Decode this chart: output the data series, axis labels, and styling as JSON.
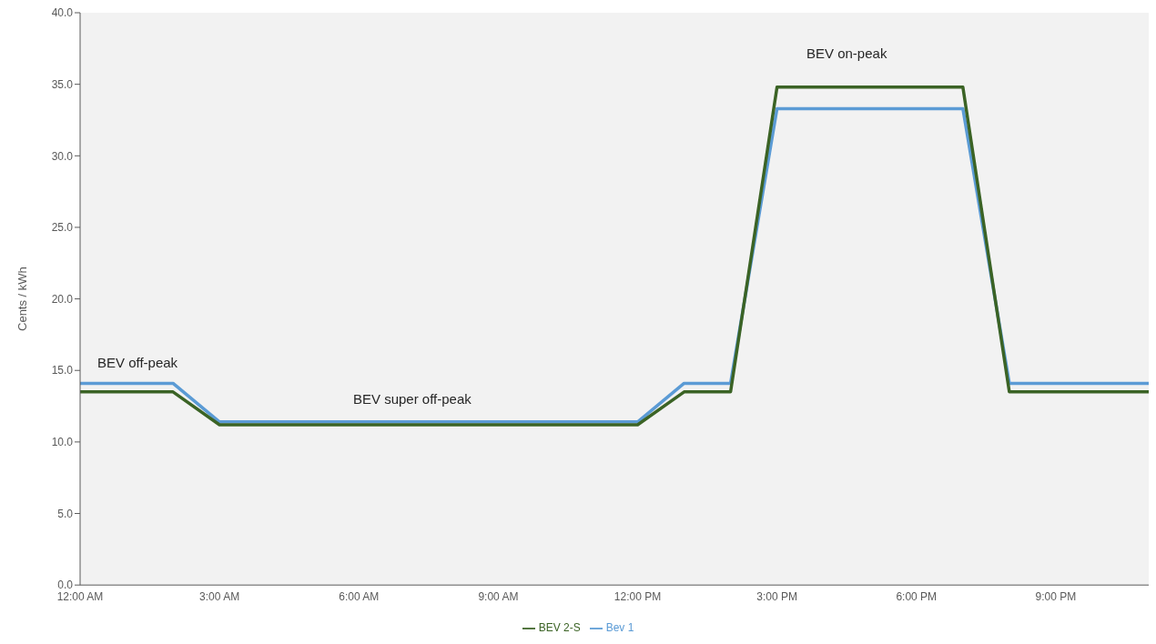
{
  "chart_data": {
    "type": "line",
    "ylabel": "Cents / kWh",
    "categories": [
      "12:00 AM",
      null,
      null,
      "3:00 AM",
      null,
      null,
      "6:00 AM",
      null,
      null,
      "9:00 AM",
      null,
      null,
      "12:00 PM",
      null,
      null,
      "3:00 PM",
      null,
      null,
      "6:00 PM",
      null,
      null,
      "9:00 PM",
      null,
      null
    ],
    "series": [
      {
        "name": "Bev 1",
        "color": "#5b9bd5",
        "values": [
          14.1,
          14.1,
          14.1,
          11.4,
          11.4,
          11.4,
          11.4,
          11.4,
          11.4,
          11.4,
          11.4,
          11.4,
          11.4,
          14.1,
          14.1,
          33.3,
          33.3,
          33.3,
          33.3,
          33.3,
          14.1,
          14.1,
          14.1,
          14.1
        ]
      },
      {
        "name": "BEV 2-S",
        "color": "#3b6325",
        "values": [
          13.5,
          13.5,
          13.5,
          11.2,
          11.2,
          11.2,
          11.2,
          11.2,
          11.2,
          11.2,
          11.2,
          11.2,
          11.2,
          13.5,
          13.5,
          34.8,
          34.8,
          34.8,
          34.8,
          34.8,
          13.5,
          13.5,
          13.5,
          13.5
        ]
      }
    ],
    "ylim": [
      0,
      40
    ],
    "yticks": [
      {
        "value": 0,
        "label": "0.0"
      },
      {
        "value": 5,
        "label": "5.0"
      },
      {
        "value": 10,
        "label": "10.0"
      },
      {
        "value": 15,
        "label": "15.0"
      },
      {
        "value": 20,
        "label": "20.0"
      },
      {
        "value": 25,
        "label": "25.0"
      },
      {
        "value": 30,
        "label": "30.0"
      },
      {
        "value": 35,
        "label": "35.0"
      },
      {
        "value": 40,
        "label": "40.0"
      }
    ],
    "annotations": [
      "BEV off-peak",
      "BEV super off-peak",
      "BEV on-peak"
    ],
    "legend": "bottom",
    "marker": "none",
    "line_style": "solid"
  }
}
